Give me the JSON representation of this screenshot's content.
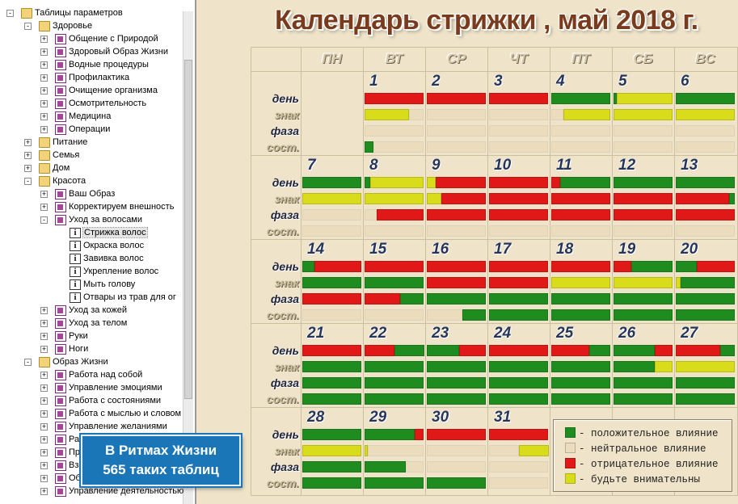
{
  "title": "Календарь стрижки , май  2018 г.",
  "colors": {
    "g": "#1e8c1e",
    "y": "#d9dc1b",
    "r": "#e01818",
    "n": "#eadcbd"
  },
  "tree": [
    {
      "label": "Таблицы параметров",
      "depth": 0,
      "icon": "folder",
      "exp": "-"
    },
    {
      "label": "Здоровье",
      "depth": 1,
      "icon": "folder",
      "exp": "-"
    },
    {
      "label": "Общение с Природой",
      "depth": 2,
      "icon": "doc",
      "exp": "+"
    },
    {
      "label": "Здоровый Образ Жизни",
      "depth": 2,
      "icon": "doc",
      "exp": "+"
    },
    {
      "label": "Водные процедуры",
      "depth": 2,
      "icon": "doc",
      "exp": "+"
    },
    {
      "label": "Профилактика",
      "depth": 2,
      "icon": "doc",
      "exp": "+"
    },
    {
      "label": "Очищение организма",
      "depth": 2,
      "icon": "doc",
      "exp": "+"
    },
    {
      "label": "Осмотрительность",
      "depth": 2,
      "icon": "doc",
      "exp": "+"
    },
    {
      "label": "Медицина",
      "depth": 2,
      "icon": "doc",
      "exp": "+"
    },
    {
      "label": "Операции",
      "depth": 2,
      "icon": "doc",
      "exp": "+"
    },
    {
      "label": "Питание",
      "depth": 1,
      "icon": "folder",
      "exp": "+"
    },
    {
      "label": "Семья",
      "depth": 1,
      "icon": "folder",
      "exp": "+"
    },
    {
      "label": "Дом",
      "depth": 1,
      "icon": "folder",
      "exp": "+"
    },
    {
      "label": "Красота",
      "depth": 1,
      "icon": "folder",
      "exp": "-"
    },
    {
      "label": "Ваш Образ",
      "depth": 2,
      "icon": "doc",
      "exp": "+"
    },
    {
      "label": "Корректируем внешность",
      "depth": 2,
      "icon": "doc",
      "exp": "+"
    },
    {
      "label": "Уход за волосами",
      "depth": 2,
      "icon": "doc",
      "exp": "-"
    },
    {
      "label": "Стрижка волос",
      "depth": 3,
      "icon": "info",
      "exp": "",
      "sel": true
    },
    {
      "label": "Окраска волос",
      "depth": 3,
      "icon": "info",
      "exp": ""
    },
    {
      "label": "Завивка волос",
      "depth": 3,
      "icon": "info",
      "exp": ""
    },
    {
      "label": "Укрепление волос",
      "depth": 3,
      "icon": "info",
      "exp": ""
    },
    {
      "label": "Мыть голову",
      "depth": 3,
      "icon": "info",
      "exp": ""
    },
    {
      "label": "Отвары из трав для ог",
      "depth": 3,
      "icon": "info",
      "exp": ""
    },
    {
      "label": "Уход за кожей",
      "depth": 2,
      "icon": "doc",
      "exp": "+"
    },
    {
      "label": "Уход за телом",
      "depth": 2,
      "icon": "doc",
      "exp": "+"
    },
    {
      "label": "Руки",
      "depth": 2,
      "icon": "doc",
      "exp": "+"
    },
    {
      "label": "Ноги",
      "depth": 2,
      "icon": "doc",
      "exp": "+"
    },
    {
      "label": "Образ Жизни",
      "depth": 1,
      "icon": "folder",
      "exp": "-"
    },
    {
      "label": "Работа над собой",
      "depth": 2,
      "icon": "doc",
      "exp": "+"
    },
    {
      "label": "Управление эмоциями",
      "depth": 2,
      "icon": "doc",
      "exp": "+"
    },
    {
      "label": "Работа с состояниями",
      "depth": 2,
      "icon": "doc",
      "exp": "+"
    },
    {
      "label": "Работа с мыслью и словом",
      "depth": 2,
      "icon": "doc",
      "exp": "+"
    },
    {
      "label": "Управление желаниями",
      "depth": 2,
      "icon": "doc",
      "exp": "+"
    },
    {
      "label": "Ра",
      "depth": 2,
      "icon": "doc",
      "exp": "+"
    },
    {
      "label": "Пр",
      "depth": 2,
      "icon": "doc",
      "exp": "+"
    },
    {
      "label": "Вз",
      "depth": 2,
      "icon": "doc",
      "exp": "+"
    },
    {
      "label": "Об",
      "depth": 2,
      "icon": "doc",
      "exp": "+"
    },
    {
      "label": "Управление деятельностью",
      "depth": 2,
      "icon": "doc",
      "exp": "+"
    }
  ],
  "badge": {
    "line1": "В Ритмах Жизни",
    "line2": "565 таких таблиц"
  },
  "weekdays": [
    "ПН",
    "ВТ",
    "СР",
    "ЧТ",
    "ПТ",
    "СБ",
    "ВС"
  ],
  "row_labels": [
    "день",
    "знак",
    "фаза",
    "сост."
  ],
  "weeks": [
    [
      null,
      {
        "d": "1",
        "b": [
          [
            [
              "r",
              1
            ]
          ],
          [
            [
              "y",
              0.75
            ],
            [
              "n",
              0.25
            ]
          ],
          [
            [
              "n",
              1
            ]
          ],
          [
            [
              "g",
              0.15
            ],
            [
              "n",
              0.85
            ]
          ]
        ]
      },
      {
        "d": "2",
        "b": [
          [
            [
              "r",
              1
            ]
          ],
          [
            [
              "n",
              1
            ]
          ],
          [
            [
              "n",
              1
            ]
          ],
          [
            [
              "n",
              1
            ]
          ]
        ]
      },
      {
        "d": "3",
        "b": [
          [
            [
              "r",
              1
            ]
          ],
          [
            [
              "n",
              1
            ]
          ],
          [
            [
              "n",
              1
            ]
          ],
          [
            [
              "n",
              1
            ]
          ]
        ]
      },
      {
        "d": "4",
        "b": [
          [
            [
              "g",
              1
            ]
          ],
          [
            [
              "n",
              0.2
            ],
            [
              "y",
              0.8
            ]
          ],
          [
            [
              "n",
              1
            ]
          ],
          [
            [
              "n",
              1
            ]
          ]
        ]
      },
      {
        "d": "5",
        "b": [
          [
            [
              "g",
              0.05
            ],
            [
              "y",
              0.95
            ]
          ],
          [
            [
              "y",
              1
            ]
          ],
          [
            [
              "n",
              1
            ]
          ],
          [
            [
              "n",
              1
            ]
          ]
        ]
      },
      {
        "d": "6",
        "b": [
          [
            [
              "g",
              1
            ]
          ],
          [
            [
              "y",
              1
            ]
          ],
          [
            [
              "n",
              1
            ]
          ],
          [
            [
              "n",
              1
            ]
          ]
        ]
      }
    ],
    [
      {
        "d": "7",
        "b": [
          [
            [
              "g",
              1
            ]
          ],
          [
            [
              "y",
              1
            ]
          ],
          [
            [
              "n",
              1
            ]
          ],
          [
            [
              "n",
              1
            ]
          ]
        ]
      },
      {
        "d": "8",
        "b": [
          [
            [
              "g",
              0.1
            ],
            [
              "y",
              0.9
            ]
          ],
          [
            [
              "y",
              1
            ]
          ],
          [
            [
              "n",
              0.2
            ],
            [
              "r",
              0.8
            ]
          ],
          [
            [
              "n",
              1
            ]
          ]
        ]
      },
      {
        "d": "9",
        "b": [
          [
            [
              "y",
              0.15
            ],
            [
              "r",
              0.85
            ]
          ],
          [
            [
              "y",
              0.25
            ],
            [
              "r",
              0.75
            ]
          ],
          [
            [
              "r",
              1
            ]
          ],
          [
            [
              "n",
              1
            ]
          ]
        ]
      },
      {
        "d": "10",
        "b": [
          [
            [
              "r",
              1
            ]
          ],
          [
            [
              "r",
              1
            ]
          ],
          [
            [
              "r",
              1
            ]
          ],
          [
            [
              "n",
              1
            ]
          ]
        ]
      },
      {
        "d": "11",
        "b": [
          [
            [
              "r",
              0.15
            ],
            [
              "g",
              0.85
            ]
          ],
          [
            [
              "r",
              1
            ]
          ],
          [
            [
              "r",
              1
            ]
          ],
          [
            [
              "n",
              1
            ]
          ]
        ]
      },
      {
        "d": "12",
        "b": [
          [
            [
              "g",
              1
            ]
          ],
          [
            [
              "r",
              1
            ]
          ],
          [
            [
              "r",
              1
            ]
          ],
          [
            [
              "n",
              1
            ]
          ]
        ]
      },
      {
        "d": "13",
        "b": [
          [
            [
              "g",
              1
            ]
          ],
          [
            [
              "r",
              0.9
            ],
            [
              "g",
              0.1
            ]
          ],
          [
            [
              "r",
              1
            ]
          ],
          [
            [
              "n",
              1
            ]
          ]
        ]
      }
    ],
    [
      {
        "d": "14",
        "b": [
          [
            [
              "g",
              0.2
            ],
            [
              "r",
              0.8
            ]
          ],
          [
            [
              "g",
              1
            ]
          ],
          [
            [
              "r",
              1
            ]
          ],
          [
            [
              "n",
              1
            ]
          ]
        ]
      },
      {
        "d": "15",
        "b": [
          [
            [
              "r",
              1
            ]
          ],
          [
            [
              "g",
              1
            ]
          ],
          [
            [
              "r",
              0.6
            ],
            [
              "g",
              0.4
            ]
          ],
          [
            [
              "n",
              1
            ]
          ]
        ]
      },
      {
        "d": "16",
        "b": [
          [
            [
              "r",
              1
            ]
          ],
          [
            [
              "r",
              1
            ]
          ],
          [
            [
              "g",
              1
            ]
          ],
          [
            [
              "n",
              0.6
            ],
            [
              "g",
              0.4
            ]
          ]
        ]
      },
      {
        "d": "17",
        "b": [
          [
            [
              "r",
              1
            ]
          ],
          [
            [
              "r",
              1
            ]
          ],
          [
            [
              "g",
              1
            ]
          ],
          [
            [
              "g",
              1
            ]
          ]
        ]
      },
      {
        "d": "18",
        "b": [
          [
            [
              "r",
              1
            ]
          ],
          [
            [
              "y",
              1
            ]
          ],
          [
            [
              "g",
              1
            ]
          ],
          [
            [
              "g",
              1
            ]
          ]
        ]
      },
      {
        "d": "19",
        "b": [
          [
            [
              "r",
              0.3
            ],
            [
              "g",
              0.7
            ]
          ],
          [
            [
              "y",
              1
            ]
          ],
          [
            [
              "g",
              1
            ]
          ],
          [
            [
              "g",
              1
            ]
          ]
        ]
      },
      {
        "d": "20",
        "b": [
          [
            [
              "g",
              0.35
            ],
            [
              "r",
              0.65
            ]
          ],
          [
            [
              "y",
              0.08
            ],
            [
              "g",
              0.92
            ]
          ],
          [
            [
              "g",
              1
            ]
          ],
          [
            [
              "g",
              1
            ]
          ]
        ]
      }
    ],
    [
      {
        "d": "21",
        "b": [
          [
            [
              "r",
              1
            ]
          ],
          [
            [
              "g",
              1
            ]
          ],
          [
            [
              "g",
              1
            ]
          ],
          [
            [
              "g",
              1
            ]
          ]
        ]
      },
      {
        "d": "22",
        "b": [
          [
            [
              "r",
              0.5
            ],
            [
              "g",
              0.5
            ]
          ],
          [
            [
              "g",
              1
            ]
          ],
          [
            [
              "g",
              1
            ]
          ],
          [
            [
              "g",
              1
            ]
          ]
        ]
      },
      {
        "d": "23",
        "b": [
          [
            [
              "g",
              0.55
            ],
            [
              "r",
              0.45
            ]
          ],
          [
            [
              "g",
              1
            ]
          ],
          [
            [
              "g",
              1
            ]
          ],
          [
            [
              "g",
              1
            ]
          ]
        ]
      },
      {
        "d": "24",
        "b": [
          [
            [
              "r",
              1
            ]
          ],
          [
            [
              "g",
              1
            ]
          ],
          [
            [
              "g",
              1
            ]
          ],
          [
            [
              "g",
              1
            ]
          ]
        ]
      },
      {
        "d": "25",
        "b": [
          [
            [
              "r",
              0.65
            ],
            [
              "g",
              0.35
            ]
          ],
          [
            [
              "g",
              1
            ]
          ],
          [
            [
              "g",
              1
            ]
          ],
          [
            [
              "g",
              1
            ]
          ]
        ]
      },
      {
        "d": "26",
        "b": [
          [
            [
              "g",
              0.7
            ],
            [
              "r",
              0.3
            ]
          ],
          [
            [
              "g",
              0.7
            ],
            [
              "y",
              0.3
            ]
          ],
          [
            [
              "g",
              1
            ]
          ],
          [
            [
              "g",
              1
            ]
          ]
        ]
      },
      {
        "d": "27",
        "b": [
          [
            [
              "r",
              0.75
            ],
            [
              "g",
              0.25
            ]
          ],
          [
            [
              "y",
              1
            ]
          ],
          [
            [
              "g",
              1
            ]
          ],
          [
            [
              "g",
              1
            ]
          ]
        ]
      }
    ],
    [
      {
        "d": "28",
        "b": [
          [
            [
              "g",
              1
            ]
          ],
          [
            [
              "y",
              1
            ]
          ],
          [
            [
              "g",
              1
            ]
          ],
          [
            [
              "g",
              1
            ]
          ]
        ]
      },
      {
        "d": "29",
        "b": [
          [
            [
              "g",
              0.85
            ],
            [
              "r",
              0.15
            ]
          ],
          [
            [
              "y",
              0.05
            ],
            [
              "n",
              0.95
            ]
          ],
          [
            [
              "g",
              0.7
            ],
            [
              "n",
              0.3
            ]
          ],
          [
            [
              "g",
              1
            ]
          ]
        ]
      },
      {
        "d": "30",
        "b": [
          [
            [
              "r",
              1
            ]
          ],
          [
            [
              "n",
              1
            ]
          ],
          [
            [
              "n",
              1
            ]
          ],
          [
            [
              "g",
              1
            ]
          ]
        ]
      },
      {
        "d": "31",
        "b": [
          [
            [
              "r",
              1
            ]
          ],
          [
            [
              "n",
              0.5
            ],
            [
              "y",
              0.5
            ]
          ],
          [
            [
              "n",
              1
            ]
          ],
          [
            [
              "n",
              1
            ]
          ]
        ]
      },
      null,
      null,
      null
    ]
  ],
  "legend": [
    {
      "color": "g",
      "label": "- положительное влияние"
    },
    {
      "color": "n",
      "label": "- нейтральное влияние"
    },
    {
      "color": "r",
      "label": "- отрицательное влияние"
    },
    {
      "color": "y",
      "label": "- будьте внимательны"
    }
  ]
}
